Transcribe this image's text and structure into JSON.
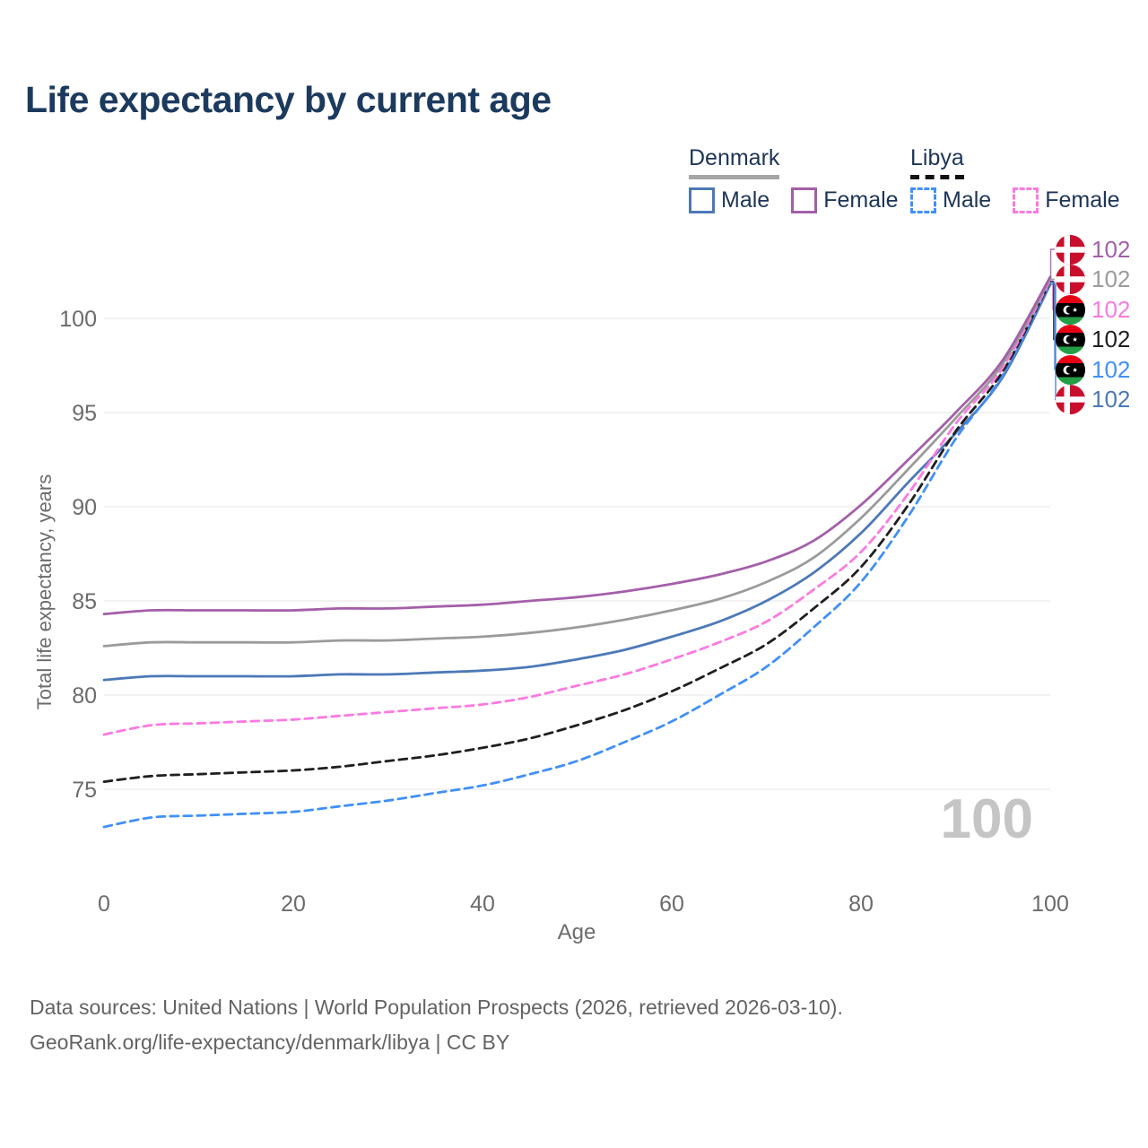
{
  "header": {
    "title": "Life expectancy by current age"
  },
  "legend": {
    "groups": [
      {
        "name": "Denmark",
        "line_style": "solid",
        "line_color": "#a6a6a6",
        "items": [
          {
            "label": "Male",
            "swatch_color": "#4c79b7",
            "swatch_style": "solid"
          },
          {
            "label": "Female",
            "swatch_color": "#a45fa9",
            "swatch_style": "solid"
          }
        ]
      },
      {
        "name": "Libya",
        "line_style": "dashed",
        "line_color": "#111111",
        "items": [
          {
            "label": "Male",
            "swatch_color": "#4190f6",
            "swatch_style": "dashed"
          },
          {
            "label": "Female",
            "swatch_color": "#fb7ae0",
            "swatch_style": "dashed"
          }
        ]
      }
    ]
  },
  "chart_data": {
    "type": "line",
    "title": "Life expectancy by current age",
    "xlabel": "Age",
    "ylabel": "Total life expectancy, years",
    "x": [
      0,
      5,
      10,
      15,
      20,
      25,
      30,
      35,
      40,
      45,
      50,
      55,
      60,
      65,
      70,
      75,
      80,
      85,
      90,
      95,
      100
    ],
    "xticks": [
      0,
      20,
      40,
      60,
      80,
      100
    ],
    "yticks": [
      75,
      80,
      85,
      90,
      95,
      100
    ],
    "xlim": [
      0,
      100
    ],
    "ylim": [
      72.5,
      102.5
    ],
    "grid": "horizontal",
    "legend_position": "top-right",
    "watermark": "100",
    "series": [
      {
        "name": "Denmark — Female",
        "country": "Denmark",
        "sex": "female",
        "color": "#a45fa9",
        "dash": "solid",
        "flag": "denmark-flag-icon",
        "end_label": "102",
        "values": [
          84.3,
          84.5,
          84.5,
          84.5,
          84.5,
          84.6,
          84.6,
          84.7,
          84.8,
          85.0,
          85.2,
          85.5,
          85.9,
          86.4,
          87.1,
          88.2,
          90.1,
          92.5,
          95.0,
          97.8,
          102.2
        ]
      },
      {
        "name": "Denmark — Both sexes",
        "country": "Denmark",
        "sex": "all",
        "color": "#9b9b9b",
        "dash": "solid",
        "flag": "denmark-flag-icon",
        "end_label": "102",
        "values": [
          82.6,
          82.8,
          82.8,
          82.8,
          82.8,
          82.9,
          82.9,
          83.0,
          83.1,
          83.3,
          83.6,
          84.0,
          84.5,
          85.1,
          86.0,
          87.3,
          89.4,
          92.0,
          94.7,
          97.6,
          102.1
        ]
      },
      {
        "name": "Libya — Female",
        "country": "Libya",
        "sex": "female",
        "color": "#fb7ae0",
        "dash": "dashed",
        "flag": "libya-flag-icon",
        "end_label": "102",
        "values": [
          77.9,
          78.4,
          78.5,
          78.6,
          78.7,
          78.9,
          79.1,
          79.3,
          79.5,
          79.9,
          80.5,
          81.1,
          81.9,
          82.8,
          83.9,
          85.6,
          87.6,
          90.7,
          94.4,
          97.4,
          102.0
        ]
      },
      {
        "name": "Libya — Both sexes",
        "country": "Libya",
        "sex": "all",
        "color": "#1f1f1f",
        "dash": "dashed",
        "flag": "libya-flag-icon",
        "end_label": "102",
        "values": [
          75.4,
          75.7,
          75.8,
          75.9,
          76.0,
          76.2,
          76.5,
          76.8,
          77.2,
          77.7,
          78.4,
          79.2,
          80.2,
          81.4,
          82.7,
          84.6,
          86.8,
          90.1,
          94.0,
          97.2,
          101.95
        ]
      },
      {
        "name": "Libya — Male",
        "country": "Libya",
        "sex": "male",
        "color": "#4190f6",
        "dash": "dashed",
        "flag": "libya-flag-icon",
        "end_label": "102",
        "values": [
          73.0,
          73.5,
          73.6,
          73.7,
          73.8,
          74.1,
          74.4,
          74.8,
          75.2,
          75.8,
          76.5,
          77.5,
          78.6,
          80.0,
          81.5,
          83.6,
          86.0,
          89.5,
          93.6,
          97.0,
          101.9
        ]
      },
      {
        "name": "Denmark — Male",
        "country": "Denmark",
        "sex": "male",
        "color": "#4c79b7",
        "dash": "solid",
        "flag": "denmark-flag-icon",
        "end_label": "102",
        "values": [
          80.8,
          81.0,
          81.0,
          81.0,
          81.0,
          81.1,
          81.1,
          81.2,
          81.3,
          81.5,
          81.9,
          82.4,
          83.1,
          83.9,
          85.0,
          86.5,
          88.6,
          91.3,
          93.9,
          96.9,
          101.8
        ]
      }
    ],
    "flag_colors": {
      "denmark_red": "#c8102e",
      "libya_red": "#e70013",
      "libya_black": "#000000",
      "libya_green": "#239e46"
    }
  },
  "axis_text_color": "#6b6b6b",
  "gridline_color": "#e9e9e9",
  "footer": {
    "line1": "Data sources: United Nations | World Population Prospects (2026, retrieved 2026-03-10).",
    "line2": "GeoRank.org/life-expectancy/denmark/libya | CC BY"
  }
}
